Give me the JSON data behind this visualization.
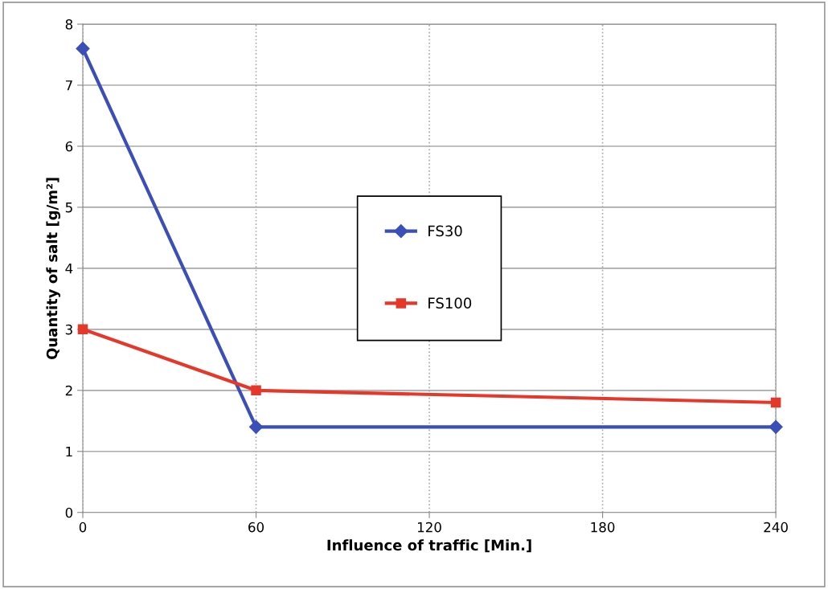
{
  "chart_data": {
    "type": "line",
    "xlabel": "Influence of traffic [Min.]",
    "ylabel": "Quantity of salt [g/m²]",
    "xlim": [
      0,
      240
    ],
    "xticks": [
      0,
      60,
      120,
      180,
      240
    ],
    "ylim": [
      0,
      8
    ],
    "yticks": [
      0,
      1,
      2,
      3,
      4,
      5,
      6,
      7,
      8
    ],
    "grid": true,
    "legend": "center",
    "line_style": "solid",
    "series": [
      {
        "name": "FS30",
        "color": "#3b4fb8",
        "marker": "diamond",
        "x": [
          0,
          60,
          240
        ],
        "values": [
          7.6,
          1.4,
          1.4
        ]
      },
      {
        "name": "FS100",
        "color": "#e5382b",
        "marker": "square",
        "x": [
          0,
          60,
          240
        ],
        "values": [
          3.0,
          2.0,
          1.8
        ]
      }
    ]
  }
}
